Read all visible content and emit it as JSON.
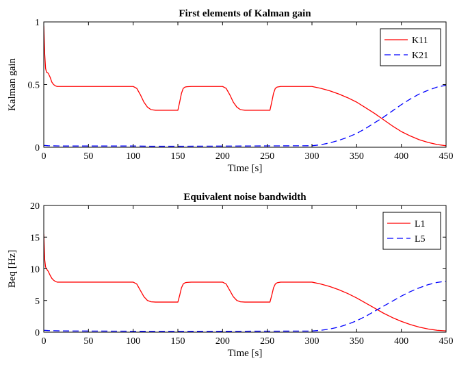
{
  "chart_data": [
    {
      "type": "line",
      "title": "First elements of Kalman gain",
      "xlabel": "Time [s]",
      "ylabel": "Kalman gain",
      "xlim": [
        0,
        450
      ],
      "ylim": [
        0,
        1
      ],
      "xticks": [
        0,
        50,
        100,
        150,
        200,
        250,
        300,
        350,
        400,
        450
      ],
      "yticks": [
        0,
        0.5,
        1
      ],
      "legend_position": "top-right",
      "grid": false,
      "series": [
        {
          "name": "K11",
          "color": "#ff0000",
          "style": "solid",
          "x": [
            0,
            1,
            2,
            3,
            5,
            7,
            9,
            11,
            13,
            15,
            100,
            104,
            108,
            112,
            116,
            120,
            125,
            150,
            152,
            154,
            156,
            158,
            160,
            165,
            200,
            204,
            208,
            212,
            216,
            220,
            225,
            253,
            255,
            257,
            259,
            261,
            265,
            300,
            310,
            320,
            330,
            340,
            350,
            360,
            370,
            380,
            390,
            400,
            410,
            420,
            430,
            440,
            450
          ],
          "values": [
            0.97,
            0.75,
            0.63,
            0.6,
            0.59,
            0.56,
            0.52,
            0.5,
            0.49,
            0.485,
            0.485,
            0.47,
            0.42,
            0.36,
            0.32,
            0.3,
            0.295,
            0.295,
            0.36,
            0.43,
            0.47,
            0.48,
            0.483,
            0.485,
            0.485,
            0.47,
            0.42,
            0.36,
            0.32,
            0.3,
            0.295,
            0.295,
            0.36,
            0.43,
            0.47,
            0.48,
            0.485,
            0.485,
            0.47,
            0.45,
            0.425,
            0.395,
            0.36,
            0.315,
            0.27,
            0.22,
            0.17,
            0.125,
            0.09,
            0.06,
            0.038,
            0.022,
            0.012
          ]
        },
        {
          "name": "K21",
          "color": "#0000ff",
          "style": "dashed",
          "x": [
            0,
            5,
            20,
            100,
            120,
            150,
            300,
            310,
            320,
            330,
            340,
            350,
            360,
            370,
            380,
            390,
            400,
            410,
            420,
            430,
            440,
            450
          ],
          "values": [
            0.015,
            0.012,
            0.01,
            0.01,
            0.008,
            0.008,
            0.012,
            0.02,
            0.035,
            0.055,
            0.08,
            0.11,
            0.15,
            0.195,
            0.24,
            0.29,
            0.34,
            0.385,
            0.425,
            0.455,
            0.48,
            0.495
          ]
        }
      ]
    },
    {
      "type": "line",
      "title": "Equivalent noise bandwidth",
      "xlabel": "Time [s]",
      "ylabel": "Beq [Hz]",
      "xlim": [
        0,
        450
      ],
      "ylim": [
        0,
        20
      ],
      "xticks": [
        0,
        50,
        100,
        150,
        200,
        250,
        300,
        350,
        400,
        450
      ],
      "yticks": [
        0,
        5,
        10,
        15,
        20
      ],
      "legend_position": "top-right",
      "grid": false,
      "series": [
        {
          "name": "L1",
          "color": "#ff0000",
          "style": "solid",
          "x": [
            0,
            1,
            2,
            3,
            5,
            7,
            9,
            11,
            13,
            15,
            100,
            104,
            108,
            112,
            116,
            120,
            125,
            150,
            152,
            154,
            156,
            158,
            160,
            165,
            200,
            204,
            208,
            212,
            216,
            220,
            225,
            253,
            255,
            257,
            259,
            261,
            265,
            300,
            310,
            320,
            330,
            340,
            350,
            360,
            370,
            380,
            390,
            400,
            410,
            420,
            430,
            440,
            450
          ],
          "values": [
            15.5,
            11.5,
            10.3,
            10.0,
            9.6,
            9.0,
            8.5,
            8.2,
            8.0,
            7.9,
            7.9,
            7.6,
            6.6,
            5.6,
            5.0,
            4.8,
            4.75,
            4.75,
            5.8,
            7.0,
            7.6,
            7.8,
            7.85,
            7.9,
            7.9,
            7.6,
            6.6,
            5.6,
            5.0,
            4.8,
            4.75,
            4.75,
            5.8,
            7.0,
            7.6,
            7.8,
            7.9,
            7.9,
            7.6,
            7.2,
            6.7,
            6.1,
            5.4,
            4.6,
            3.8,
            3.0,
            2.3,
            1.7,
            1.2,
            0.8,
            0.5,
            0.3,
            0.2
          ]
        },
        {
          "name": "L5",
          "color": "#0000ff",
          "style": "dashed",
          "x": [
            0,
            5,
            20,
            100,
            120,
            150,
            300,
            310,
            320,
            330,
            340,
            350,
            360,
            370,
            380,
            390,
            400,
            410,
            420,
            430,
            440,
            450
          ],
          "values": [
            0.3,
            0.25,
            0.2,
            0.15,
            0.12,
            0.12,
            0.18,
            0.3,
            0.5,
            0.8,
            1.25,
            1.8,
            2.5,
            3.3,
            4.1,
            4.9,
            5.7,
            6.4,
            7.0,
            7.5,
            7.85,
            8.05
          ]
        }
      ]
    }
  ]
}
